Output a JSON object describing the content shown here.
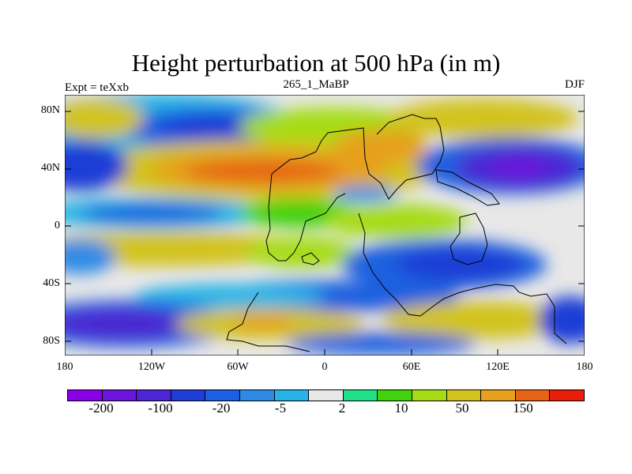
{
  "title": "Height perturbation at 500 hPa (in m)",
  "subtitle_left": "Expt = teXxb",
  "subtitle_center": "265_1_MaBP",
  "subtitle_right": "DJF",
  "y_axis_labels": [
    "80N",
    "40N",
    "0",
    "40S",
    "80S"
  ],
  "x_axis_labels": [
    "180",
    "120W",
    "60W",
    "0",
    "60E",
    "120E",
    "180"
  ],
  "colorbar": {
    "colors": [
      "#8a00e6",
      "#6b14dc",
      "#4b26d2",
      "#1f3ed6",
      "#1a60e0",
      "#2e8ae6",
      "#26b4e6",
      "#e8e8e8",
      "#22e08a",
      "#40d20a",
      "#a6dc14",
      "#d2c31e",
      "#e6a01e",
      "#e66414",
      "#e61e0a"
    ],
    "labels": [
      "-200",
      "-100",
      "-20",
      "-5",
      "2",
      "10",
      "50",
      "150"
    ]
  },
  "map_regions": [
    {
      "name": "north-pacific-low",
      "value_class": "-100"
    },
    {
      "name": "north-atlantic-high",
      "value_class": "50"
    },
    {
      "name": "asia-low",
      "value_class": "-100"
    },
    {
      "name": "southern-ocean-low",
      "value_class": "-100"
    },
    {
      "name": "south-atlantic-high",
      "value_class": "50"
    },
    {
      "name": "indian-ocean-low",
      "value_class": "-20"
    }
  ]
}
